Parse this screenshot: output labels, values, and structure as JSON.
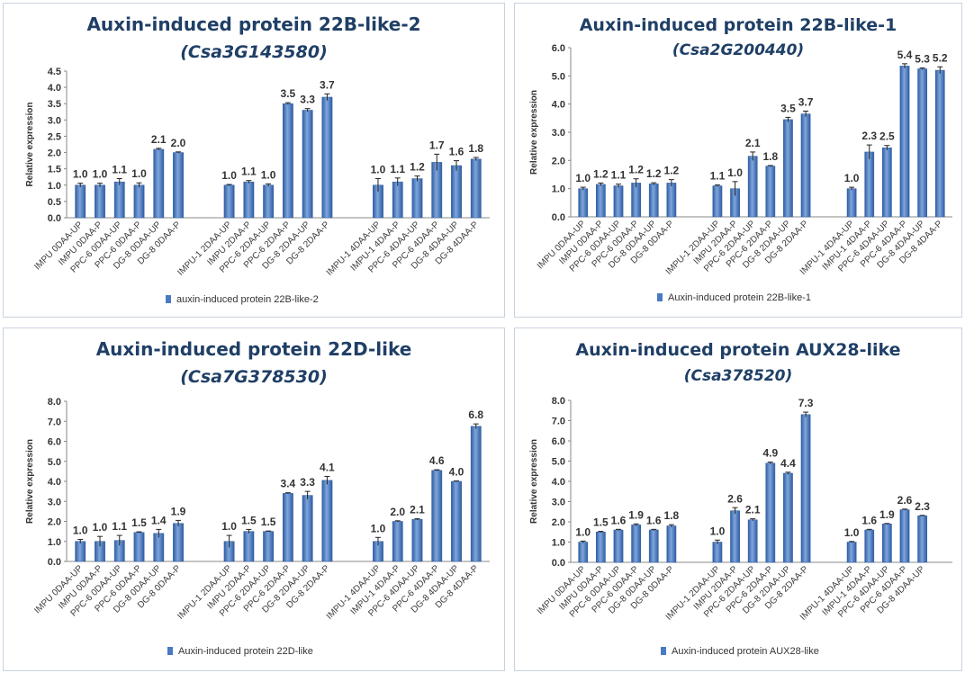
{
  "chart_data": [
    {
      "type": "bar",
      "title": "Auxin-induced protein 22B-like-2",
      "subtitle": "(Csa3G143580)",
      "ylabel": "Relative expression",
      "xlabel": "",
      "legend": "auxin-induced protein 22B-like-2",
      "legend_position": "bottom",
      "ylim": [
        0,
        4.5
      ],
      "ystep": 0.5,
      "categories": [
        [
          "IMPU 0DAA-UP",
          "IMPU 0DAA-P",
          "PPC-6 0DAA-UP",
          "PPC-6 0DAA-P",
          "DG-8 0DAA-UP",
          "DG-8 0DAA-P"
        ],
        [
          "IMPU-1 2DAA-UP",
          "IMPU 2DAA-P",
          "PPC-6 2DAA-UP",
          "PPC-6 2DAA-P",
          "DG-8 2DAA-UP",
          "DG-8 2DAA-P"
        ],
        [
          "IMPU-1 4DAA-UP",
          "IMPU-1 4DAA-P",
          "PPC-6 4DAA-UP",
          "PPC-6 4DAA-P",
          "DG-8 4DAA-UP",
          "DG-8 4DAA-P"
        ]
      ],
      "values": [
        [
          1.0,
          1.0,
          1.1,
          1.0,
          2.1,
          2.0
        ],
        [
          1.0,
          1.1,
          1.0,
          3.5,
          3.3,
          3.7
        ],
        [
          1.0,
          1.1,
          1.2,
          1.7,
          1.6,
          1.8
        ]
      ],
      "errors": [
        [
          0.06,
          0.06,
          0.1,
          0.07,
          0.03,
          0.02
        ],
        [
          0.02,
          0.04,
          0.04,
          0.03,
          0.05,
          0.1
        ],
        [
          0.2,
          0.12,
          0.08,
          0.25,
          0.15,
          0.05
        ]
      ],
      "value_labels": [
        [
          "1.0",
          "1.0",
          "1.1",
          "1.0",
          "2.1",
          "2.0"
        ],
        [
          "1.0",
          "1.1",
          "1.0",
          "3.5",
          "3.3",
          "3.7"
        ],
        [
          "1.0",
          "1.1",
          "1.2",
          "1.7",
          "1.6",
          "1.8"
        ]
      ]
    },
    {
      "type": "bar",
      "title": "Auxin-induced protein 22B-like-1",
      "subtitle": "(Csa2G200440)",
      "ylabel": "Relative expression",
      "xlabel": "",
      "legend": "Auxin-induced protein 22B-like-1",
      "legend_position": "bottom",
      "ylim": [
        0,
        6.0
      ],
      "ystep": 1.0,
      "categories": [
        [
          "IMPU 0DAA-UP",
          "IMPU 0DAA-P",
          "PPC-6 0DAA-UP",
          "PPC-6 0DAA-P",
          "DG-8 0DAA-UP",
          "DG-8 0DAA-P"
        ],
        [
          "IMPU-1 2DAA-UP",
          "IMPU 2DAA-P",
          "PPC-6 2DAA-UP",
          "PPC-6 2DAA-P",
          "DG-8 2DAA-UP",
          "DG-8 2DAA-P"
        ],
        [
          "IMPU-1 4DAA-UP",
          "IMPU-1 4DAA-P",
          "PPC-6 4DAA-UP",
          "PPC-6 4DAA-P",
          "DG-8 4DAA-UP",
          "DG-8 4DAA-P"
        ]
      ],
      "values": [
        [
          1.0,
          1.15,
          1.1,
          1.2,
          1.17,
          1.2
        ],
        [
          1.1,
          1.0,
          2.15,
          1.8,
          3.45,
          3.65
        ],
        [
          1.0,
          2.3,
          2.45,
          5.35,
          5.25,
          5.2
        ]
      ],
      "errors": [
        [
          0.05,
          0.05,
          0.06,
          0.15,
          0.04,
          0.12
        ],
        [
          0.03,
          0.25,
          0.15,
          0.02,
          0.08,
          0.1
        ],
        [
          0.05,
          0.25,
          0.08,
          0.08,
          0.03,
          0.12
        ]
      ],
      "value_labels": [
        [
          "1.0",
          "1.2",
          "1.1",
          "1.2",
          "1.2",
          "1.2"
        ],
        [
          "1.1",
          "1.0",
          "2.1",
          "1.8",
          "3.5",
          "3.7"
        ],
        [
          "1.0",
          "2.3",
          "2.5",
          "5.4",
          "5.3",
          "5.2"
        ]
      ]
    },
    {
      "type": "bar",
      "title": "Auxin-induced protein 22D-like",
      "subtitle": "(Csa7G378530)",
      "ylabel": "Relative expression",
      "xlabel": "",
      "legend": "Auxin-induced protein 22D-like",
      "legend_position": "bottom",
      "ylim": [
        0,
        8.0
      ],
      "ystep": 1.0,
      "categories": [
        [
          "IMPU 0DAA-UP",
          "IMPU 0DAA-P",
          "PPC-6 0DAA-UP",
          "PPC-6 0DAA-P",
          "DG-8 0DAA-UP",
          "DG-8 0DAA-P"
        ],
        [
          "IMPU-1 2DAA-UP",
          "IMPU 2DAA-P",
          "PPC-6 2DAA-UP",
          "PPC-6 2DAA-P",
          "DG-8 2DAA-UP",
          "DG-8 2DAA-P"
        ],
        [
          "IMPU-1 4DAA-UP",
          "IMPU-1 4DAA-P",
          "PPC-6 4DAA-UP",
          "PPC-6 4DAA-P",
          "DG-8 4DAA-UP",
          "DG-8 4DAA-P"
        ]
      ],
      "values": [
        [
          1.0,
          1.0,
          1.05,
          1.45,
          1.4,
          1.9
        ],
        [
          1.0,
          1.5,
          1.5,
          3.4,
          3.3,
          4.05
        ],
        [
          1.0,
          2.0,
          2.1,
          4.55,
          4.0,
          6.75
        ]
      ],
      "errors": [
        [
          0.1,
          0.25,
          0.25,
          0.03,
          0.2,
          0.15
        ],
        [
          0.3,
          0.1,
          0.02,
          0.03,
          0.2,
          0.2
        ],
        [
          0.2,
          0.03,
          0.03,
          0.03,
          0.02,
          0.12
        ]
      ],
      "value_labels": [
        [
          "1.0",
          "1.0",
          "1.1",
          "1.5",
          "1.4",
          "1.9"
        ],
        [
          "1.0",
          "1.5",
          "1.5",
          "3.4",
          "3.3",
          "4.1"
        ],
        [
          "1.0",
          "2.0",
          "2.1",
          "4.6",
          "4.0",
          "6.8"
        ]
      ]
    },
    {
      "type": "bar",
      "title": "Auxin-induced protein AUX28-like",
      "subtitle": "(Csa378520)",
      "ylabel": "Relative expression",
      "xlabel": "",
      "legend": "Auxin-induced protein AUX28-like",
      "legend_position": "bottom",
      "ylim": [
        0,
        8.0
      ],
      "ystep": 1.0,
      "categories": [
        [
          "IMPU 0DAA-UP",
          "IMPU 0DAA-P",
          "PPC-6 0DAA-UP",
          "PPC-6 0DAA-P",
          "DG-8 0DAA-UP",
          "DG-8 0DAA-P"
        ],
        [
          "IMPU-1 2DAA-UP",
          "IMPU 2DAA-P",
          "PPC-6 2DAA-UP",
          "PPC-6 2DAA-P",
          "DG-8 2DAA-UP",
          "DG-8 2DAA-P"
        ],
        [
          "IMPU-1 4DAA-UP",
          "IMPU-1 4DAA-P",
          "PPC-6 4DAA-UP",
          "PPC-6 4DAA-P",
          "DG-8 4DAA-UP"
        ]
      ],
      "values": [
        [
          1.0,
          1.5,
          1.6,
          1.85,
          1.6,
          1.8
        ],
        [
          1.0,
          2.55,
          2.1,
          4.9,
          4.4,
          7.3
        ],
        [
          1.0,
          1.6,
          1.9,
          2.6,
          2.3
        ]
      ],
      "errors": [
        [
          0.05,
          0.03,
          0.03,
          0.05,
          0.03,
          0.06
        ],
        [
          0.1,
          0.15,
          0.05,
          0.05,
          0.05,
          0.12
        ],
        [
          0.03,
          0.03,
          0.02,
          0.03,
          0.02
        ]
      ],
      "value_labels": [
        [
          "1.0",
          "1.5",
          "1.6",
          "1.9",
          "1.6",
          "1.8"
        ],
        [
          "1.0",
          "2.6",
          "2.1",
          "4.9",
          "4.4",
          "7.3"
        ],
        [
          "1.0",
          "1.6",
          "1.9",
          "2.6",
          "2.3"
        ]
      ]
    }
  ],
  "style": {
    "bar_color": "#4a7ac2",
    "bar_dark": "#2f5da3",
    "bar_light": "#7fa6dc",
    "title_color": "#1f3f66",
    "axis_color": "#888888",
    "border_color": "#c9d3e0"
  }
}
